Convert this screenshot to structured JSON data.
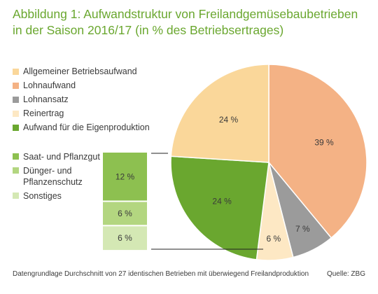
{
  "title_line1": "Abbildung 1: Aufwandstruktur von Freilandgemüsebaubetrieben",
  "title_line2": "in der Saison 2016/17 (in % des Betriebsertrages)",
  "footer": "Datengrundlage Durchschnitt von 27 identischen Betrieben mit überwiegend Freilandproduktion",
  "source": "Quelle: ZBG",
  "legend": [
    {
      "label": "Allgemeiner Betriebsaufwand",
      "color": "#fad79a"
    },
    {
      "label": "Lohnaufwand",
      "color": "#f4b285"
    },
    {
      "label": "Lohnansatz",
      "color": "#9b9b9b"
    },
    {
      "label": "Reinertrag",
      "color": "#fde8c4"
    },
    {
      "label": "Aufwand für die Eigenproduktion",
      "color": "#6aa72f"
    }
  ],
  "sublegend": [
    {
      "label": "Saat- und Pflanzgut",
      "color": "#8dc050"
    },
    {
      "label": "Dünger- und Pflanzenschutz",
      "color": "#b3d680"
    },
    {
      "label": "Sonstiges",
      "color": "#d4e8b4"
    }
  ],
  "chart_data": [
    {
      "type": "pie",
      "title": "",
      "slices": [
        {
          "label": "Lohnaufwand",
          "value": 39,
          "value_label": "39 %",
          "color": "#f4b285"
        },
        {
          "label": "Lohnansatz",
          "value": 7,
          "value_label": "7 %",
          "color": "#9b9b9b"
        },
        {
          "label": "Reinertrag",
          "value": 6,
          "value_label": "6 %",
          "color": "#fde8c4"
        },
        {
          "label": "Aufwand für die Eigenproduktion",
          "value": 24,
          "value_label": "24 %",
          "color": "#6aa72f"
        },
        {
          "label": "Allgemeiner Betriebsaufwand",
          "value": 24,
          "value_label": "24 %",
          "color": "#fad79a"
        }
      ]
    },
    {
      "type": "bar",
      "stacked": true,
      "title": "",
      "series": [
        {
          "name": "Saat- und Pflanzgut",
          "value": 12,
          "value_label": "12 %",
          "color": "#8dc050"
        },
        {
          "name": "Dünger- und Pflanzenschutz",
          "value": 6,
          "value_label": "6 %",
          "color": "#b3d680"
        },
        {
          "name": "Sonstiges",
          "value": 6,
          "value_label": "6 %",
          "color": "#d4e8b4"
        }
      ]
    }
  ]
}
